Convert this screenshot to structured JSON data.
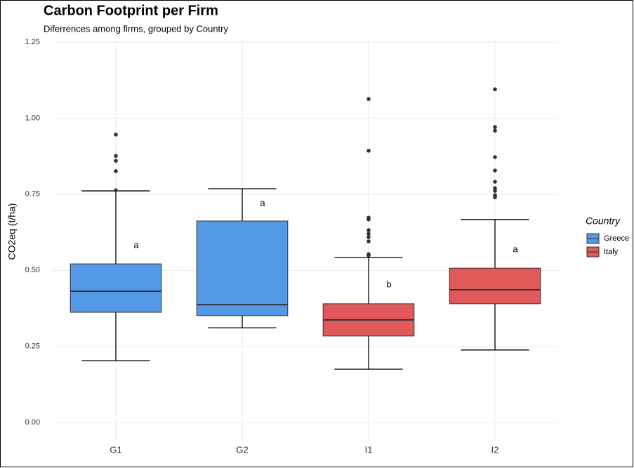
{
  "chart_data": {
    "type": "box",
    "title": "Carbon Footprint per Firm",
    "subtitle": "Diferrences among firms, grouped by Country",
    "y_label": "CO2eq (t/ha)",
    "legend_title": "Country",
    "legend": "right",
    "grid": true,
    "ylim": [
      -0.06,
      1.26
    ],
    "yticks": [
      {
        "value": 0,
        "label": "0.00"
      },
      {
        "value": 0.25,
        "label": "0.25"
      },
      {
        "value": 0.5,
        "label": "0.50"
      },
      {
        "value": 0.75,
        "label": "0.75"
      },
      {
        "value": 1,
        "label": "1.00"
      },
      {
        "value": 1.25,
        "label": "1.25"
      }
    ],
    "series": [
      {
        "name": "Greece",
        "color": "#5499e8",
        "categories": [
          "G1",
          "G2"
        ],
        "boxes": [
          {
            "whisker_low": 0.203,
            "q1": 0.362,
            "median": 0.431,
            "q3": 0.521,
            "whisker_high": 0.761,
            "outliers": [
              0.946,
              0.876,
              0.86,
              0.826,
              0.763
            ],
            "letter": "a",
            "letter_y": 0.581
          },
          {
            "whisker_low": 0.311,
            "q1": 0.351,
            "median": 0.387,
            "q3": 0.662,
            "whisker_high": 0.768,
            "outliers": [],
            "letter": "a",
            "letter_y": 0.72
          }
        ]
      },
      {
        "name": "Italy",
        "color": "#e05a5a",
        "categories": [
          "I1",
          "I2"
        ],
        "boxes": [
          {
            "whisker_low": 0.175,
            "q1": 0.284,
            "median": 0.337,
            "q3": 0.39,
            "whisker_high": 0.542,
            "outliers": [
              1.063,
              0.893,
              0.673,
              0.667,
              0.632,
              0.62,
              0.609,
              0.595,
              0.553,
              0.549
            ],
            "letter": "b",
            "letter_y": 0.452
          },
          {
            "whisker_low": 0.238,
            "q1": 0.39,
            "median": 0.436,
            "q3": 0.507,
            "whisker_high": 0.667,
            "outliers": [
              1.095,
              0.971,
              0.959,
              0.872,
              0.828,
              0.791,
              0.77,
              0.761,
              0.747,
              0.74
            ],
            "letter": "a",
            "letter_y": 0.567
          }
        ]
      }
    ]
  }
}
